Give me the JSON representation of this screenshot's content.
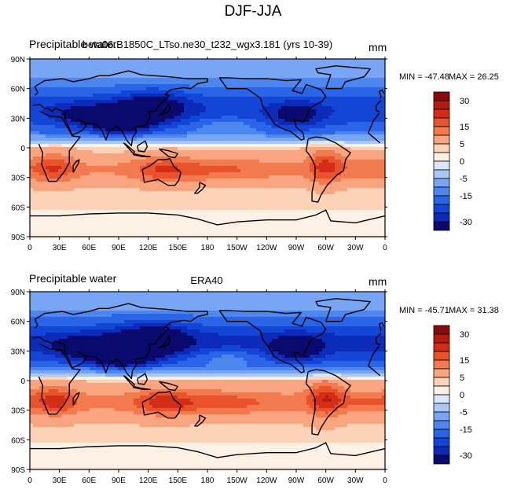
{
  "figure": {
    "title": "DJF-JJA"
  },
  "chart_data": [
    {
      "type": "heatmap",
      "panel": "top",
      "left_title": "Precipitable water",
      "center_title": "beta06.B1850C_LTso.ne30_t232_wgx3.181 (yrs 10-39)",
      "units": "mm",
      "min_label": "MIN = -47.48",
      "max_label": "MAX =  26.25",
      "min": -47.48,
      "max": 26.25,
      "x_ticks": [
        "0",
        "30E",
        "60E",
        "90E",
        "120E",
        "150E",
        "180",
        "150W",
        "120W",
        "90W",
        "60W",
        "30W",
        "0"
      ],
      "y_ticks": [
        "90N",
        "60N",
        "30N",
        "0",
        "30S",
        "60S",
        "90S"
      ],
      "projection": "cylindrical equidistant, 0-360 longitude"
    },
    {
      "type": "heatmap",
      "panel": "bottom",
      "left_title": "Precipitable water",
      "center_title": "ERA40",
      "units": "mm",
      "min_label": "MIN = -45.71",
      "max_label": "MAX = 31.38",
      "min": -45.71,
      "max": 31.38,
      "x_ticks": [
        "0",
        "30E",
        "60E",
        "90E",
        "120E",
        "150E",
        "180",
        "150W",
        "120W",
        "90W",
        "60W",
        "30W",
        "0"
      ],
      "y_ticks": [
        "90N",
        "60N",
        "30N",
        "0",
        "30S",
        "60S",
        "90S"
      ],
      "projection": "cylindrical equidistant, 0-360 longitude"
    }
  ],
  "colorbar": {
    "levels": [
      -35,
      -30,
      -25,
      -20,
      -15,
      -10,
      -5,
      -2,
      0,
      2,
      5,
      10,
      15,
      20,
      25,
      30,
      35
    ],
    "labels": [
      "30",
      "15",
      "5",
      "0",
      "-5",
      "-15",
      "-30"
    ],
    "label_values": [
      30,
      15,
      5,
      0,
      -5,
      -15,
      -30
    ],
    "colors": [
      "#0a0a6e",
      "#0c2bb8",
      "#1346d6",
      "#2965e6",
      "#4d86ef",
      "#78a6f4",
      "#a9c8f8",
      "#d9e8fb",
      "#fdf1e6",
      "#fcd3b6",
      "#f9a57f",
      "#f3794f",
      "#e8532b",
      "#d42d17",
      "#b51c10",
      "#8a0a0a"
    ]
  }
}
